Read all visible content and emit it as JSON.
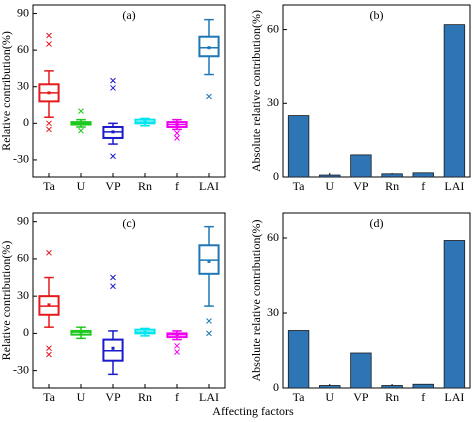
{
  "xlabel": "Affecting factors",
  "chart_data": [
    {
      "type": "box",
      "label": "(a)",
      "ylabel": "Relative contribution(%)",
      "categories": [
        "Ta",
        "U",
        "VP",
        "Rn",
        "f",
        "LAI"
      ],
      "ylim": [
        -44,
        97
      ],
      "yticks": [
        -30,
        0,
        30,
        60,
        90
      ],
      "boxes": [
        {
          "color": "#e41a1c",
          "min": 5,
          "q1": 18,
          "median": 25,
          "q3": 32,
          "max": 43,
          "mean": 25,
          "outliers": [
            72,
            65,
            0,
            -5
          ]
        },
        {
          "color": "#1ec81e",
          "min": -3,
          "q1": -1,
          "median": 0,
          "q3": 1,
          "max": 3,
          "mean": 0,
          "outliers": [
            10,
            -6
          ]
        },
        {
          "color": "#1a1acc",
          "min": -17,
          "q1": -12,
          "median": -7,
          "q3": -3,
          "max": 0,
          "mean": -7,
          "outliers": [
            35,
            29,
            -27
          ]
        },
        {
          "color": "#00e5ee",
          "min": -2,
          "q1": 0,
          "median": 1,
          "q3": 3,
          "max": 4,
          "mean": 1,
          "outliers": []
        },
        {
          "color": "#ee00ee",
          "min": -5,
          "q1": -3,
          "median": -1,
          "q3": 1,
          "max": 3,
          "mean": -1,
          "outliers": [
            -8,
            -12
          ]
        },
        {
          "color": "#1f77b4",
          "min": 40,
          "q1": 55,
          "median": 62,
          "q3": 71,
          "max": 85,
          "mean": 62,
          "outliers": [
            22
          ]
        }
      ]
    },
    {
      "type": "bar",
      "label": "(b)",
      "ylabel": "Absolute relative contribution(%)",
      "categories": [
        "Ta",
        "U",
        "VP",
        "Rn",
        "f",
        "LAI"
      ],
      "values": [
        25,
        0.8,
        9,
        1.3,
        1.7,
        62
      ],
      "color": "#2e75b6",
      "ylim": [
        0,
        70
      ],
      "yticks": [
        0,
        30,
        60
      ]
    },
    {
      "type": "box",
      "label": "(c)",
      "ylabel": "Relative contribution(%)",
      "categories": [
        "Ta",
        "U",
        "VP",
        "Rn",
        "f",
        "LAI"
      ],
      "ylim": [
        -44,
        97
      ],
      "yticks": [
        -30,
        0,
        30,
        60,
        90
      ],
      "boxes": [
        {
          "color": "#e41a1c",
          "min": 5,
          "q1": 15,
          "median": 22,
          "q3": 30,
          "max": 45,
          "mean": 23,
          "outliers": [
            65,
            -12,
            -17
          ]
        },
        {
          "color": "#1ec81e",
          "min": -4,
          "q1": -1,
          "median": 1,
          "q3": 2,
          "max": 5,
          "mean": 1,
          "outliers": []
        },
        {
          "color": "#1a1acc",
          "min": -33,
          "q1": -22,
          "median": -14,
          "q3": -5,
          "max": 2,
          "mean": -12,
          "outliers": [
            45,
            38
          ]
        },
        {
          "color": "#00e5ee",
          "min": -2,
          "q1": 0,
          "median": 1,
          "q3": 3,
          "max": 4,
          "mean": 1,
          "outliers": []
        },
        {
          "color": "#ee00ee",
          "min": -5,
          "q1": -3,
          "median": -1,
          "q3": 0,
          "max": 2,
          "mean": -1,
          "outliers": [
            -10,
            -15
          ]
        },
        {
          "color": "#1f77b4",
          "min": 22,
          "q1": 48,
          "median": 59,
          "q3": 71,
          "max": 86,
          "mean": 58,
          "outliers": [
            10,
            0
          ]
        }
      ]
    },
    {
      "type": "bar",
      "label": "(d)",
      "ylabel": "Absolute relative contribution(%)",
      "categories": [
        "Ta",
        "U",
        "VP",
        "Rn",
        "f",
        "LAI"
      ],
      "values": [
        23,
        1,
        14,
        1,
        1.5,
        59
      ],
      "color": "#2e75b6",
      "ylim": [
        0,
        70
      ],
      "yticks": [
        0,
        30,
        60
      ]
    }
  ]
}
